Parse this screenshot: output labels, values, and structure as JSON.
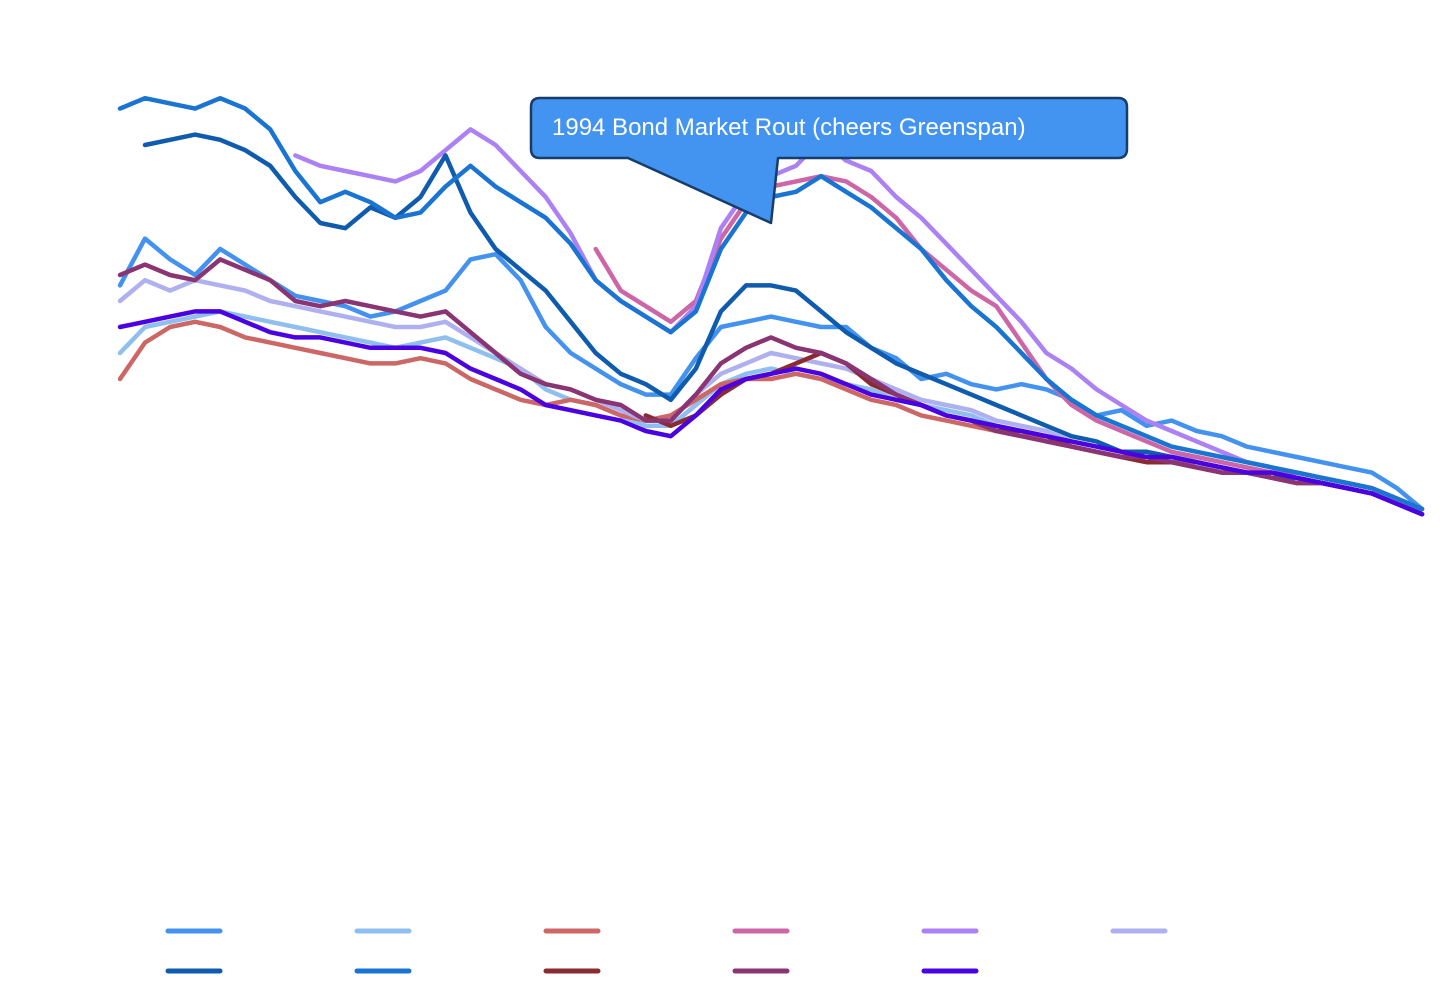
{
  "chart_data": {
    "type": "line",
    "title": "",
    "xlabel": "",
    "ylabel": "",
    "grid": false,
    "legend": {
      "placement": "bottom",
      "columns": 6
    },
    "x": [
      0,
      1,
      2,
      3,
      4,
      5,
      6,
      7,
      8,
      9,
      10,
      11,
      12,
      13,
      14,
      15,
      16,
      17,
      18,
      19,
      20,
      21,
      22,
      23,
      24,
      25,
      26,
      27,
      28,
      29,
      30,
      31,
      32,
      33,
      34,
      35,
      36,
      37,
      38,
      39,
      40,
      41,
      42,
      43,
      44,
      45,
      46,
      47,
      48,
      49,
      50,
      51,
      52
    ],
    "xlim": [
      0,
      52
    ],
    "ylim": [
      0,
      100
    ],
    "annotation": {
      "text": "1994 Bond Market Rout (cheers Greenspan)",
      "target_x": 26,
      "target_y": 75,
      "color": "#4393f0"
    },
    "series": [
      {
        "name": "",
        "color": "#4392ef",
        "values": [
          63,
          72,
          68,
          65,
          70,
          67,
          64,
          61,
          60,
          59,
          57,
          58,
          60,
          62,
          68,
          69,
          64,
          55,
          50,
          47,
          44,
          42,
          42,
          49,
          55,
          56,
          57,
          56,
          55,
          55,
          51,
          49,
          45,
          46,
          44,
          43,
          44,
          43,
          41,
          38,
          39,
          36,
          37,
          35,
          34,
          32,
          31,
          30,
          29,
          28,
          27,
          24,
          20
        ]
      },
      {
        "name": "",
        "color": "#8fbfef",
        "values": [
          50,
          55,
          56,
          57,
          58,
          57,
          56,
          55,
          54,
          53,
          52,
          51,
          52,
          53,
          51,
          49,
          47,
          43,
          41,
          40,
          38,
          36,
          36,
          40,
          44,
          46,
          47,
          46,
          45,
          44,
          43,
          41,
          40,
          39,
          38,
          36,
          35,
          34,
          33,
          32,
          31,
          31,
          30,
          30,
          29,
          28,
          27,
          27,
          26,
          25,
          24,
          22,
          19
        ]
      },
      {
        "name": "",
        "color": "#cd6766",
        "values": [
          45,
          52,
          55,
          56,
          55,
          53,
          52,
          51,
          50,
          49,
          48,
          48,
          49,
          48,
          45,
          43,
          41,
          40,
          41,
          40,
          38,
          37,
          38,
          41,
          44,
          45,
          45,
          46,
          45,
          43,
          41,
          40,
          38,
          37,
          36,
          35,
          35,
          33,
          32,
          31,
          30,
          30,
          29,
          29,
          28,
          27,
          27,
          26,
          25,
          24,
          23,
          21,
          19
        ]
      },
      {
        "name": "",
        "color": "#cd66a6",
        "values": [
          null,
          null,
          null,
          null,
          null,
          null,
          null,
          null,
          null,
          null,
          null,
          null,
          null,
          null,
          null,
          null,
          null,
          null,
          null,
          70,
          62,
          59,
          56,
          60,
          72,
          79,
          82,
          83,
          84,
          83,
          80,
          76,
          70,
          66,
          62,
          59,
          52,
          45,
          40,
          37,
          35,
          33,
          31,
          30,
          29,
          28,
          27,
          27,
          26,
          25,
          24,
          22,
          20
        ]
      },
      {
        "name": "",
        "color": "#ac81f3",
        "values": [
          null,
          null,
          null,
          null,
          null,
          null,
          null,
          88,
          86,
          85,
          84,
          83,
          85,
          89,
          93,
          90,
          85,
          80,
          73,
          64,
          60,
          57,
          54,
          59,
          74,
          81,
          84,
          86,
          91,
          87,
          85,
          80,
          76,
          71,
          66,
          61,
          56,
          50,
          47,
          43,
          40,
          37,
          35,
          33,
          31,
          29,
          28,
          27,
          26,
          25,
          24,
          22,
          20
        ]
      },
      {
        "name": "",
        "color": "#aeb0ef",
        "values": [
          60,
          64,
          62,
          64,
          63,
          62,
          60,
          59,
          58,
          57,
          56,
          55,
          55,
          56,
          53,
          50,
          47,
          44,
          43,
          41,
          39,
          37,
          37,
          42,
          46,
          48,
          50,
          49,
          48,
          47,
          45,
          43,
          41,
          40,
          39,
          37,
          36,
          35,
          33,
          32,
          31,
          30,
          29,
          28,
          28,
          27,
          26,
          26,
          25,
          24,
          23,
          21,
          19
        ]
      },
      {
        "name": "",
        "color": "#0f5bae",
        "values": [
          null,
          90,
          91,
          92,
          91,
          89,
          86,
          80,
          75,
          74,
          78,
          76,
          80,
          88,
          77,
          70,
          66,
          62,
          56,
          50,
          46,
          44,
          41,
          47,
          58,
          63,
          63,
          62,
          58,
          54,
          51,
          48,
          46,
          44,
          42,
          40,
          38,
          36,
          34,
          33,
          31,
          31,
          30,
          29,
          28,
          27,
          26,
          26,
          25,
          24,
          23,
          21,
          19
        ]
      },
      {
        "name": "",
        "color": "#1a74d2",
        "values": [
          97,
          99,
          98,
          97,
          99,
          97,
          93,
          85,
          79,
          81,
          79,
          76,
          77,
          82,
          86,
          82,
          79,
          76,
          71,
          64,
          60,
          57,
          54,
          58,
          70,
          77,
          80,
          81,
          84,
          81,
          78,
          74,
          70,
          64,
          59,
          55,
          50,
          45,
          41,
          38,
          36,
          34,
          32,
          31,
          30,
          29,
          28,
          27,
          26,
          25,
          24,
          22,
          20
        ]
      },
      {
        "name": "",
        "color": "#8a2b31",
        "values": [
          null,
          null,
          null,
          null,
          null,
          null,
          null,
          null,
          null,
          null,
          null,
          null,
          null,
          null,
          null,
          null,
          null,
          null,
          null,
          null,
          null,
          38,
          36,
          38,
          42,
          45,
          46,
          48,
          50,
          48,
          44,
          42,
          40,
          38,
          37,
          35,
          35,
          34,
          32,
          31,
          30,
          29,
          29,
          28,
          27,
          27,
          26,
          25,
          25,
          24,
          23,
          21,
          19
        ]
      },
      {
        "name": "",
        "color": "#8a3474",
        "values": [
          65,
          67,
          65,
          64,
          68,
          66,
          64,
          60,
          59,
          60,
          59,
          58,
          57,
          58,
          54,
          50,
          46,
          44,
          43,
          41,
          40,
          37,
          37,
          42,
          48,
          51,
          53,
          51,
          50,
          48,
          45,
          42,
          40,
          38,
          37,
          35,
          34,
          33,
          32,
          31,
          30,
          30,
          29,
          28,
          27,
          27,
          26,
          25,
          25,
          24,
          23,
          21,
          19
        ]
      },
      {
        "name": "",
        "color": "#4a03e0",
        "values": [
          55,
          56,
          57,
          58,
          58,
          56,
          54,
          53,
          53,
          52,
          51,
          51,
          51,
          50,
          47,
          45,
          43,
          40,
          39,
          38,
          37,
          35,
          34,
          38,
          43,
          45,
          46,
          47,
          46,
          44,
          42,
          41,
          40,
          38,
          37,
          36,
          35,
          34,
          33,
          32,
          31,
          30,
          30,
          29,
          28,
          27,
          27,
          26,
          25,
          24,
          23,
          21,
          19
        ]
      }
    ]
  }
}
